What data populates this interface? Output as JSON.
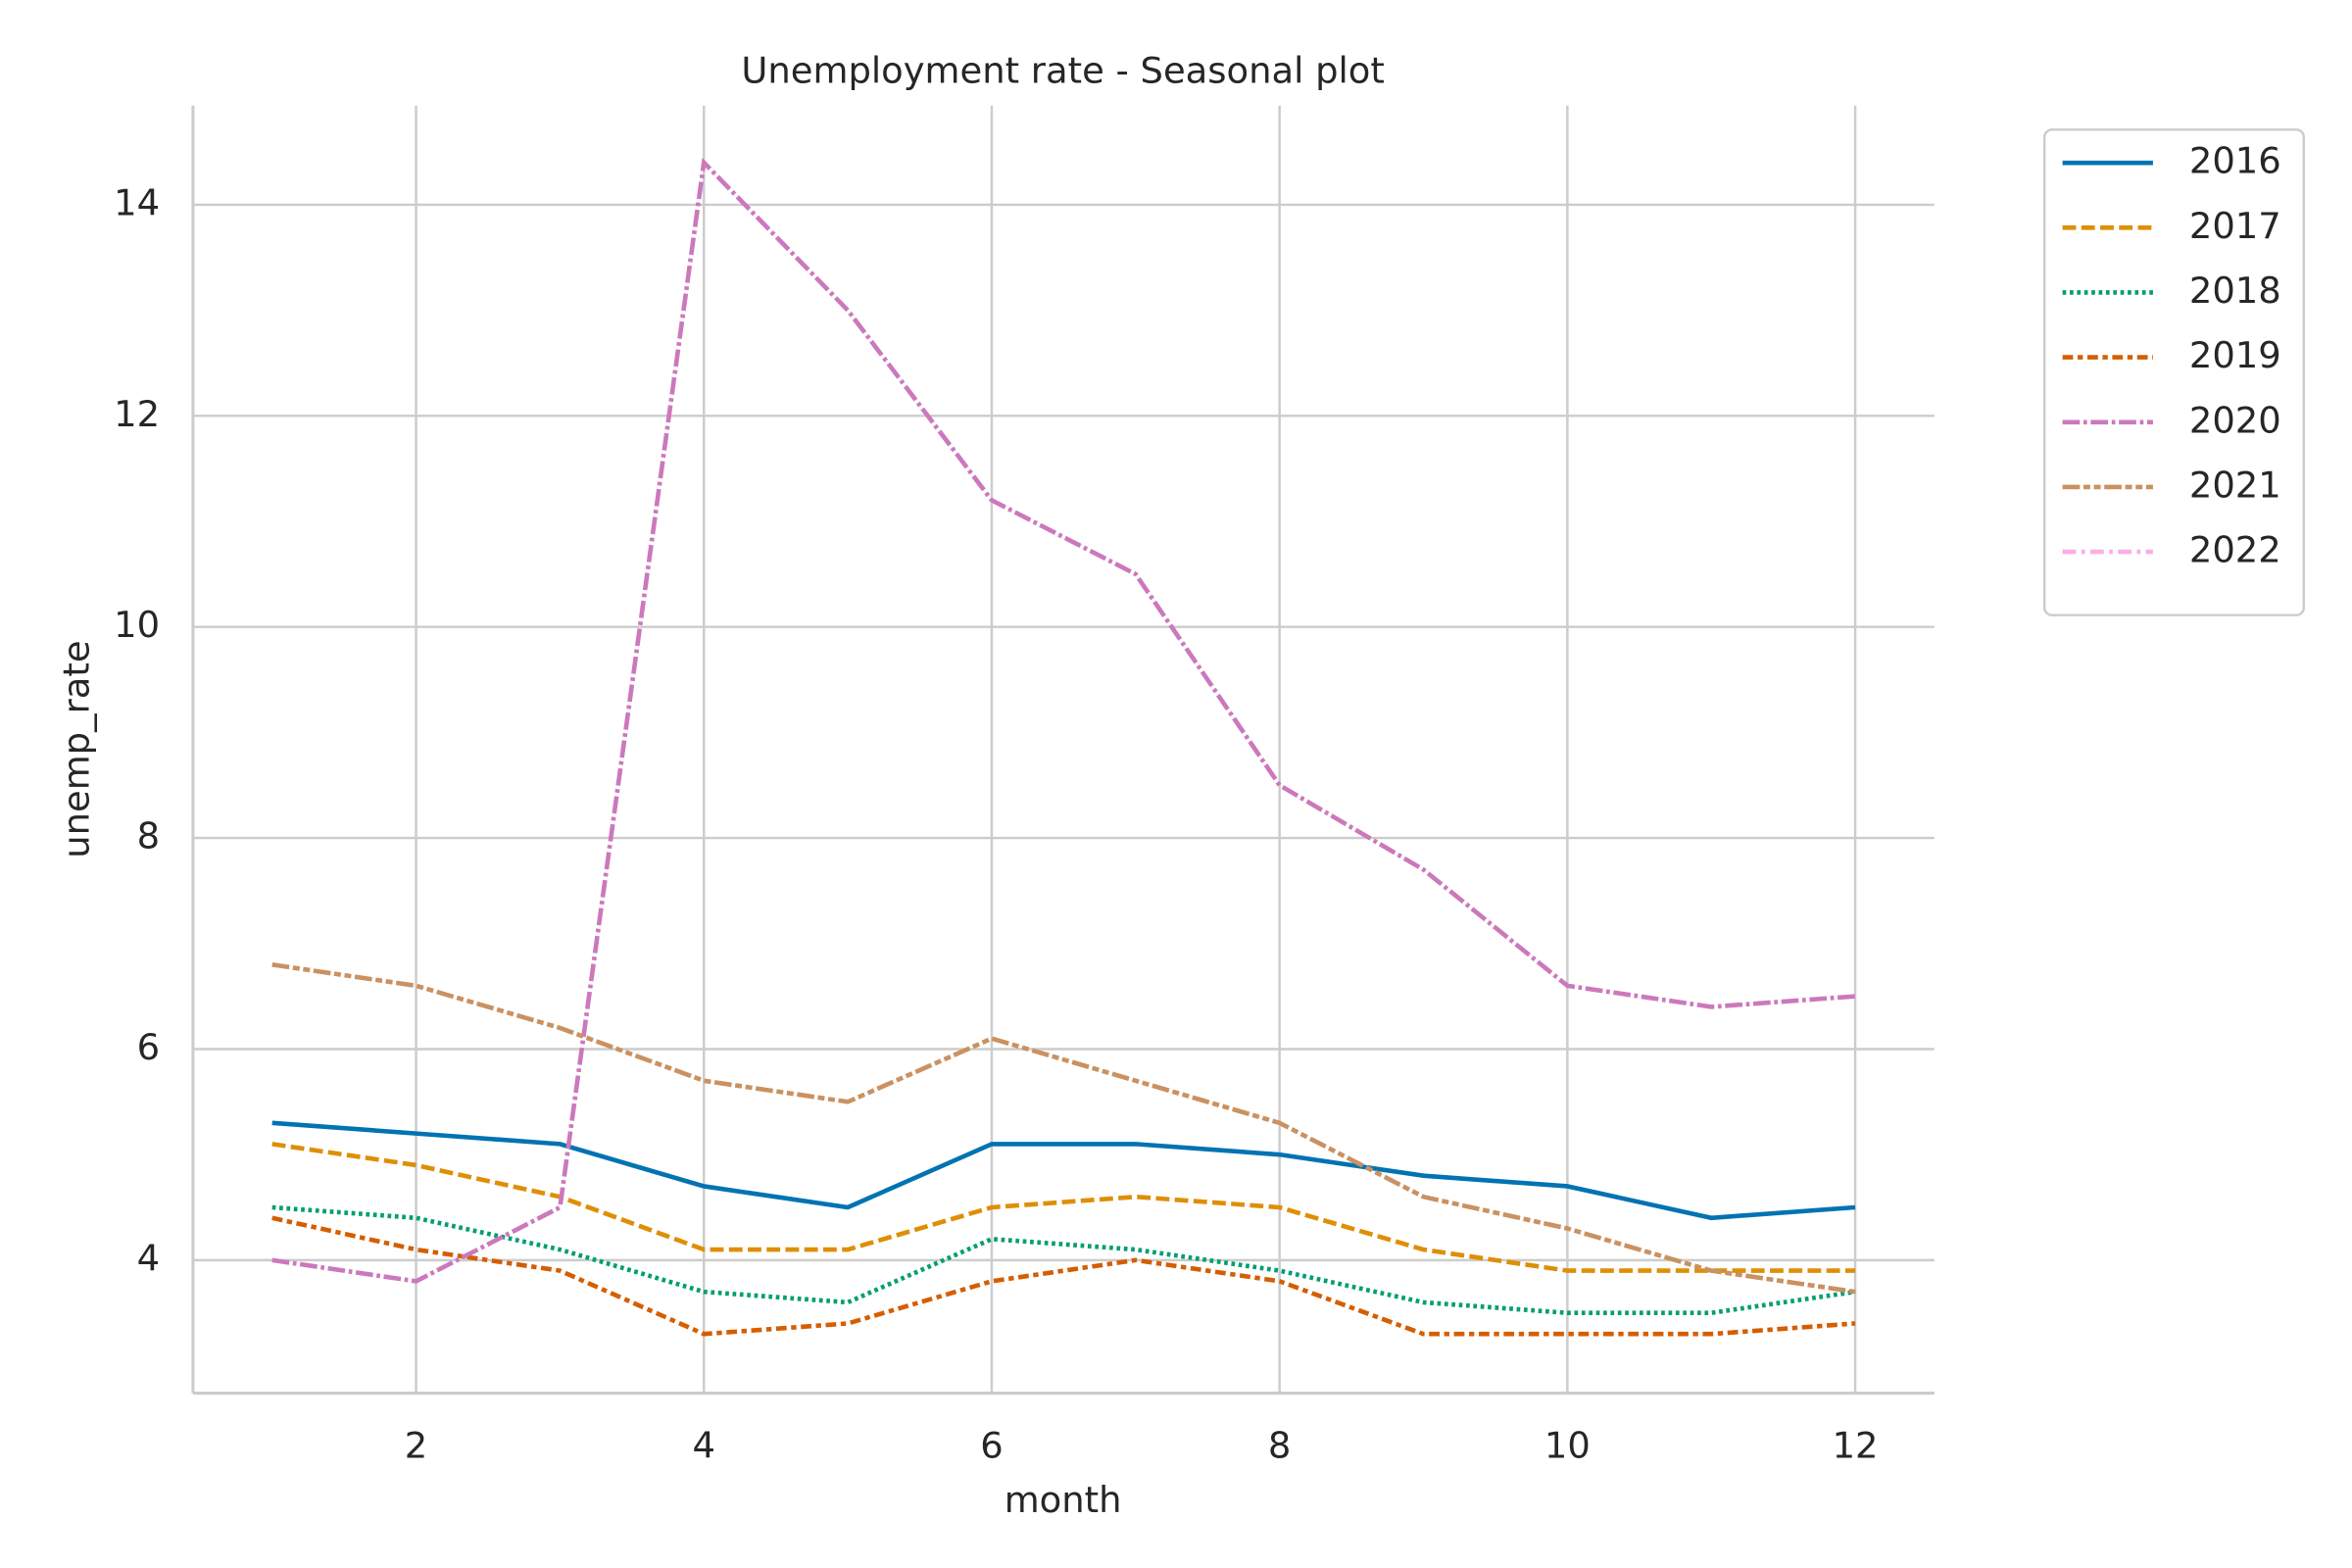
{
  "chart_data": {
    "type": "line",
    "title": "Unemployment rate - Seasonal plot",
    "x_label": "month",
    "y_label": "unemp_rate",
    "x": [
      1,
      2,
      3,
      4,
      5,
      6,
      7,
      8,
      9,
      10,
      11,
      12
    ],
    "series": [
      {
        "name": "2016",
        "color": "#0173b2",
        "values": [
          5.3,
          5.2,
          5.1,
          4.7,
          4.5,
          5.1,
          5.1,
          5.0,
          4.8,
          4.7,
          4.4,
          4.5
        ]
      },
      {
        "name": "2017",
        "color": "#de8f05",
        "values": [
          5.1,
          4.9,
          4.6,
          4.1,
          4.1,
          4.5,
          4.6,
          4.5,
          4.1,
          3.9,
          3.9,
          3.9
        ]
      },
      {
        "name": "2018",
        "color": "#029e73",
        "values": [
          4.5,
          4.4,
          4.1,
          3.7,
          3.6,
          4.2,
          4.1,
          3.9,
          3.6,
          3.5,
          3.5,
          3.7
        ]
      },
      {
        "name": "2019",
        "color": "#d55e00",
        "values": [
          4.4,
          4.1,
          3.9,
          3.3,
          3.4,
          3.8,
          4.0,
          3.8,
          3.3,
          3.3,
          3.3,
          3.4
        ]
      },
      {
        "name": "2020",
        "color": "#cc78bc",
        "values": [
          4.0,
          3.8,
          4.5,
          14.4,
          13.0,
          11.2,
          10.5,
          8.5,
          7.7,
          6.6,
          6.4,
          6.5
        ]
      },
      {
        "name": "2021",
        "color": "#ca9161",
        "values": [
          6.8,
          6.6,
          6.2,
          5.7,
          5.5,
          6.1,
          5.7,
          5.3,
          4.6,
          4.3,
          3.9,
          3.7
        ]
      },
      {
        "name": "2022",
        "color": "#fbafe4",
        "values": [
          null,
          null,
          null,
          null,
          null,
          null,
          null,
          null,
          null,
          null,
          null,
          null
        ]
      }
    ],
    "xlim": [
      0.45,
      12.55
    ],
    "xticks": [
      2,
      4,
      6,
      8,
      10,
      12
    ],
    "ylim": [
      2.74,
      14.94
    ],
    "yticks": [
      4,
      6,
      8,
      10,
      12,
      14
    ],
    "grid": true,
    "legend": "outside upper right"
  }
}
